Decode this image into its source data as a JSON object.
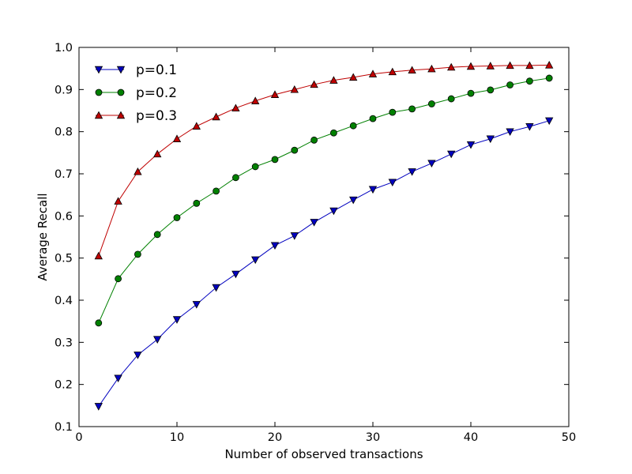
{
  "chart_data": {
    "type": "line",
    "title": "",
    "xlabel": "Number of observed transactions",
    "ylabel": "Average Recall",
    "xlim": [
      0,
      50
    ],
    "ylim": [
      0.1,
      1.0
    ],
    "xticks": [
      "0",
      "10",
      "20",
      "30",
      "40",
      "50"
    ],
    "yticks": [
      "0.1",
      "0.2",
      "0.3",
      "0.4",
      "0.5",
      "0.6",
      "0.7",
      "0.8",
      "0.9",
      "1.0"
    ],
    "grid": false,
    "legend_position": "top-left",
    "x": [
      2,
      4,
      6,
      8,
      10,
      12,
      14,
      16,
      18,
      20,
      22,
      24,
      26,
      28,
      30,
      32,
      34,
      36,
      38,
      40,
      42,
      44,
      46,
      48
    ],
    "series": [
      {
        "name": "p=0.1",
        "color": "#0000bf",
        "marker": "triangle-down",
        "values": [
          0.148,
          0.215,
          0.27,
          0.307,
          0.354,
          0.39,
          0.43,
          0.462,
          0.496,
          0.53,
          0.553,
          0.585,
          0.612,
          0.638,
          0.663,
          0.68,
          0.705,
          0.725,
          0.747,
          0.769,
          0.783,
          0.8,
          0.812,
          0.826
        ]
      },
      {
        "name": "p=0.2",
        "color": "#008000",
        "marker": "circle",
        "values": [
          0.346,
          0.451,
          0.509,
          0.556,
          0.596,
          0.63,
          0.659,
          0.691,
          0.717,
          0.734,
          0.756,
          0.78,
          0.797,
          0.814,
          0.831,
          0.846,
          0.854,
          0.866,
          0.878,
          0.891,
          0.899,
          0.911,
          0.92,
          0.927
        ]
      },
      {
        "name": "p=0.3",
        "color": "#bf0000",
        "marker": "triangle-up",
        "values": [
          0.505,
          0.635,
          0.705,
          0.747,
          0.783,
          0.813,
          0.835,
          0.856,
          0.873,
          0.888,
          0.9,
          0.912,
          0.922,
          0.929,
          0.937,
          0.942,
          0.946,
          0.949,
          0.953,
          0.955,
          0.956,
          0.957,
          0.957,
          0.958
        ]
      }
    ]
  }
}
